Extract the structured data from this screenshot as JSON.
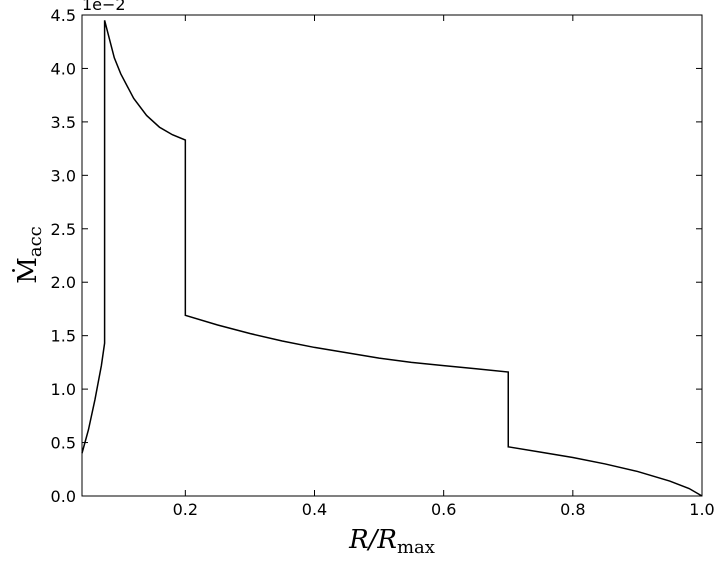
{
  "chart_data": {
    "type": "line",
    "xlabel": {
      "main": "R/R",
      "sub": "max"
    },
    "ylabel": {
      "main": "Ṁ",
      "sub": "acc"
    },
    "offset_text": "1e−2",
    "x": [
      0.04,
      0.05,
      0.06,
      0.07,
      0.075,
      0.075,
      0.09,
      0.1,
      0.12,
      0.14,
      0.16,
      0.18,
      0.2,
      0.2,
      0.25,
      0.3,
      0.35,
      0.4,
      0.45,
      0.5,
      0.55,
      0.6,
      0.65,
      0.7,
      0.7,
      0.75,
      0.8,
      0.85,
      0.9,
      0.95,
      0.98,
      1.0
    ],
    "series": [
      {
        "color": "#000000",
        "values": [
          0.4,
          0.62,
          0.9,
          1.22,
          1.43,
          4.45,
          4.1,
          3.95,
          3.72,
          3.56,
          3.45,
          3.38,
          3.33,
          1.69,
          1.6,
          1.52,
          1.45,
          1.39,
          1.34,
          1.29,
          1.25,
          1.22,
          1.19,
          1.16,
          0.46,
          0.41,
          0.36,
          0.3,
          0.23,
          0.14,
          0.07,
          0.0
        ]
      }
    ],
    "xlim": [
      0.04,
      1.0
    ],
    "ylim": [
      0,
      4.5
    ],
    "xticks": [
      0.2,
      0.4,
      0.6,
      0.8,
      {
        "value": 1.0,
        "label": "1.0"
      }
    ],
    "yticks": [
      {
        "value": 0,
        "label": "0.0"
      },
      0.5,
      {
        "value": 1,
        "label": "1.0"
      },
      1.5,
      {
        "value": 2,
        "label": "2.0"
      },
      2.5,
      {
        "value": 3,
        "label": "3.0"
      },
      3.5,
      {
        "value": 4,
        "label": "4.0"
      },
      4.5
    ]
  }
}
